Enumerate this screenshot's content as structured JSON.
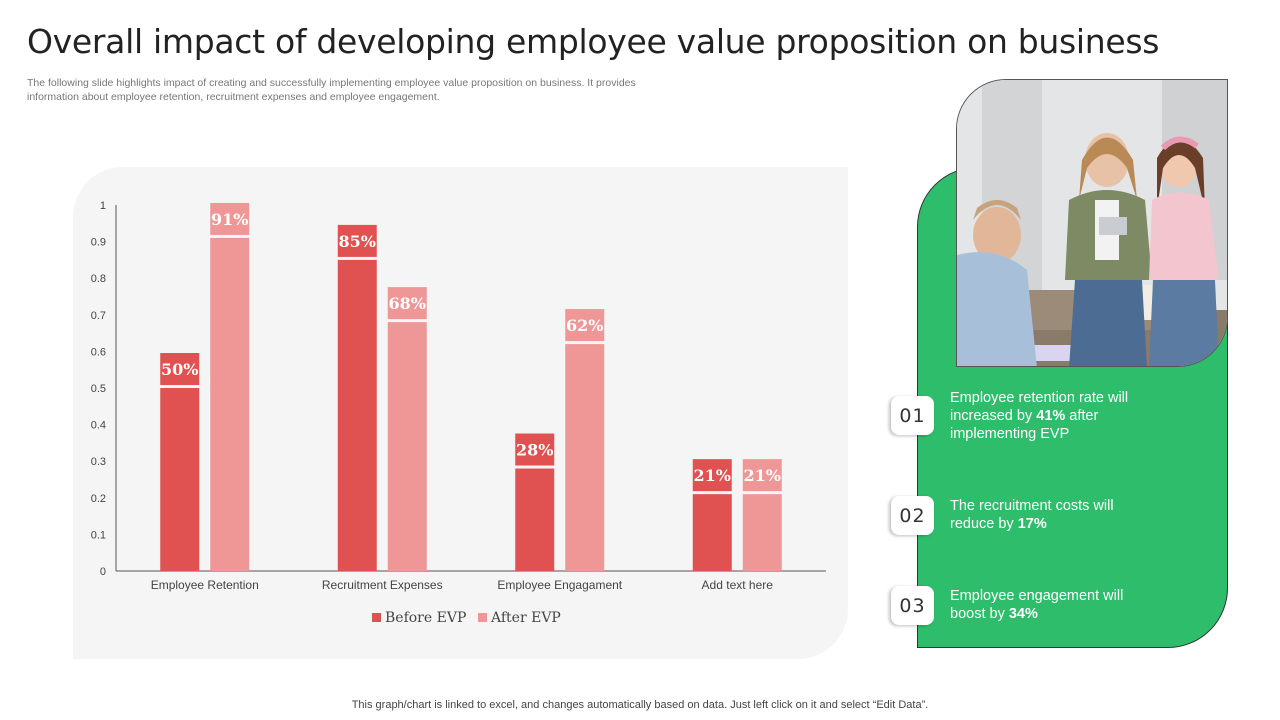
{
  "title": "Overall impact of developing employee value proposition on business",
  "subtitle": "The following slide highlights impact of creating and successfully implementing employee value proposition on business. It provides information about employee retention, recruitment expenses and employee engagement.",
  "colors": {
    "before": "#e05252",
    "after": "#ef9797",
    "green_panel": "#2ebd6b"
  },
  "chart_data": {
    "type": "bar",
    "categories": [
      "Employee Retention",
      "Recruitment Expenses",
      "Employee Engagament",
      "Add text here"
    ],
    "series": [
      {
        "name": "Before EVP",
        "values": [
          0.5,
          0.85,
          0.28,
          0.21
        ],
        "labels": [
          "50%",
          "85%",
          "28%",
          "21%"
        ],
        "color": "#e05252"
      },
      {
        "name": "After EVP",
        "values": [
          0.91,
          0.68,
          0.62,
          0.21
        ],
        "labels": [
          "91%",
          "68%",
          "62%",
          "21%"
        ],
        "color": "#ef9797"
      }
    ],
    "ylim": [
      0,
      1
    ],
    "yticks": [
      "0",
      "0.1",
      "0.2",
      "0.3",
      "0.4",
      "0.5",
      "0.6",
      "0.7",
      "0.8",
      "0.9",
      "1"
    ],
    "legend_position": "bottom",
    "grid": false
  },
  "points": [
    {
      "number": "01",
      "pre": "Employee retention rate will increased by ",
      "highlight": "41%",
      "post": " after implementing EVP"
    },
    {
      "number": "02",
      "pre": "The recruitment costs will reduce by ",
      "highlight": "17%",
      "post": ""
    },
    {
      "number": "03",
      "pre": "Employee engagement will boost by ",
      "highlight": "34%",
      "post": ""
    }
  ],
  "footer": "This graph/chart is linked to excel,  and changes automatically based on data. Just left click on it and select “Edit Data”."
}
